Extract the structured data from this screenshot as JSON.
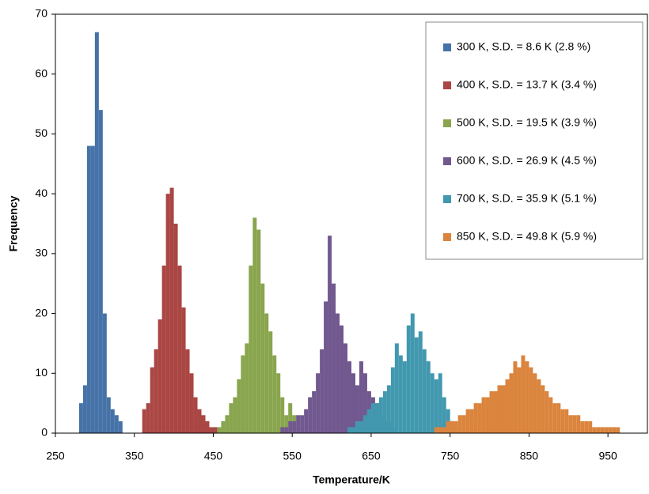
{
  "chart_data": {
    "type": "histogram",
    "xlabel": "Temperature/K",
    "ylabel": "Frequency",
    "xlim": [
      250,
      1000
    ],
    "xticks": [
      250,
      350,
      450,
      550,
      650,
      750,
      850,
      950
    ],
    "ylim": [
      0,
      70
    ],
    "yticks": [
      0,
      10,
      20,
      30,
      40,
      50,
      60,
      70
    ],
    "legend": "top-right",
    "series": [
      {
        "name": "300 K, S.D. = 8.6 K (2.8 %)",
        "color": "#4572a7",
        "bins": [
          280,
          285,
          290,
          295,
          300,
          305,
          310,
          315,
          320,
          325,
          330,
          335
        ],
        "values": [
          5,
          8,
          48,
          48,
          67,
          54,
          20,
          6,
          4,
          3,
          2
        ]
      },
      {
        "name": "400 K, S.D. = 13.7 K (3.4 %)",
        "color": "#aa4643",
        "bins": [
          360,
          365,
          370,
          375,
          380,
          385,
          390,
          395,
          400,
          405,
          410,
          415,
          420,
          425,
          430,
          435,
          440,
          445,
          450,
          455
        ],
        "values": [
          4,
          5,
          11,
          14,
          19,
          28,
          40,
          41,
          35,
          28,
          21,
          14,
          10,
          6,
          4,
          3,
          2,
          1,
          1
        ]
      },
      {
        "name": "500 K, S.D. = 19.5 K (3.9 %)",
        "color": "#89a54e",
        "bins": [
          455,
          460,
          465,
          470,
          475,
          480,
          485,
          490,
          495,
          500,
          505,
          510,
          515,
          520,
          525,
          530,
          535,
          540,
          545,
          550,
          555,
          560
        ],
        "values": [
          1,
          2,
          3,
          5,
          6,
          9,
          13,
          15,
          28,
          36,
          34,
          25,
          20,
          17,
          13,
          10,
          6,
          3,
          5,
          3,
          1
        ]
      },
      {
        "name": "600 K, S.D. = 26.9 K (4.5 %)",
        "color": "#71588f",
        "bins": [
          535,
          540,
          545,
          550,
          555,
          560,
          565,
          570,
          575,
          580,
          585,
          590,
          595,
          600,
          605,
          610,
          615,
          620,
          625,
          630,
          635,
          640,
          645,
          650,
          655,
          660,
          665,
          670,
          675,
          680
        ],
        "values": [
          1,
          1,
          2,
          2,
          3,
          3,
          4,
          6,
          7,
          10,
          14,
          22,
          33,
          25,
          20,
          18,
          15,
          12,
          10,
          8,
          12,
          10,
          7,
          6,
          5,
          3,
          2,
          2,
          1
        ]
      },
      {
        "name": "700 K, S.D. = 35.9 K (5.1 %)",
        "color": "#4198af",
        "bins": [
          620,
          625,
          630,
          635,
          640,
          645,
          650,
          655,
          660,
          665,
          670,
          675,
          680,
          685,
          690,
          695,
          700,
          705,
          710,
          715,
          720,
          725,
          730,
          735,
          740,
          745,
          750,
          755,
          760
        ],
        "values": [
          1,
          1,
          2,
          2,
          3,
          4,
          5,
          5,
          6,
          7,
          8,
          11,
          15,
          13,
          12,
          18,
          20,
          16,
          17,
          14,
          12,
          10,
          9,
          10,
          6,
          4,
          2,
          1
        ]
      },
      {
        "name": "850 K, S.D. = 49.8 K (5.9 %)",
        "color": "#db843d",
        "bins": [
          730,
          735,
          740,
          745,
          750,
          755,
          760,
          765,
          770,
          775,
          780,
          785,
          790,
          795,
          800,
          805,
          810,
          815,
          820,
          825,
          830,
          835,
          840,
          845,
          850,
          855,
          860,
          865,
          870,
          875,
          880,
          885,
          890,
          895,
          900,
          905,
          910,
          915,
          920,
          925,
          930,
          935,
          940,
          945,
          950,
          955,
          960,
          965
        ],
        "values": [
          1,
          1,
          1,
          2,
          2,
          2,
          3,
          3,
          4,
          4,
          5,
          5,
          6,
          6,
          7,
          7,
          8,
          8,
          9,
          10,
          12,
          11,
          13,
          12,
          11,
          10,
          9,
          8,
          7,
          6,
          5,
          5,
          4,
          4,
          3,
          3,
          3,
          2,
          2,
          2,
          1,
          1,
          1,
          1,
          1,
          1,
          1
        ]
      }
    ]
  }
}
